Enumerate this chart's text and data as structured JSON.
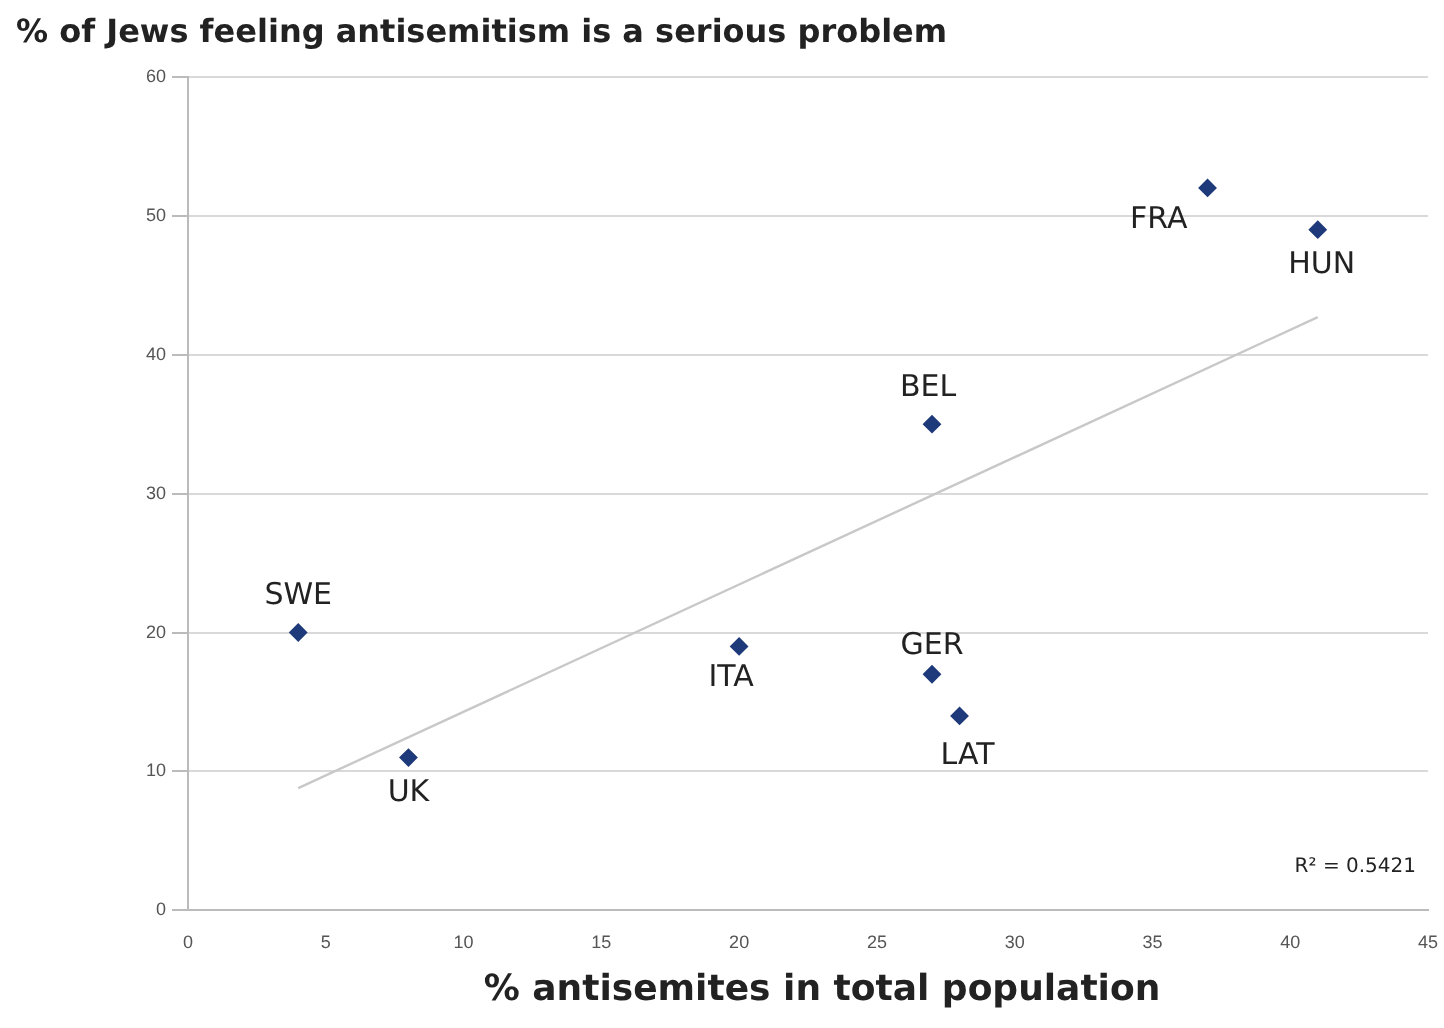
{
  "chart_data": {
    "type": "scatter",
    "title": "% of Jews feeling antisemitism is a serious problem",
    "xlabel": "% antisemites in total population",
    "x": [
      4,
      8,
      20,
      27,
      28,
      27,
      37,
      41
    ],
    "series": [
      {
        "color": "#1f3a7a",
        "values": [
          20,
          11,
          19,
          17,
          14,
          35,
          52,
          49
        ],
        "marker": "diamond"
      },
      {
        "type": "line",
        "color": "#c8c8c8",
        "x": [
          4,
          41
        ],
        "values": [
          8.8,
          42.7
        ],
        "marker": "none"
      }
    ],
    "annotations": [
      {
        "text": "SWE",
        "x": 4,
        "y": 20
      },
      {
        "text": "UK",
        "x": 8,
        "y": 11
      },
      {
        "text": "ITA",
        "x": 20,
        "y": 19
      },
      {
        "text": "GER",
        "x": 27,
        "y": 17
      },
      {
        "text": "LAT",
        "x": 28,
        "y": 14
      },
      {
        "text": "BEL",
        "x": 27,
        "y": 35
      },
      {
        "text": "FRA",
        "x": 37,
        "y": 52
      },
      {
        "text": "HUN",
        "x": 41,
        "y": 49
      },
      "R² = 0.5421"
    ],
    "xlim": [
      0,
      45
    ],
    "xticks": [
      0,
      5,
      10,
      15,
      20,
      25,
      30,
      35,
      40,
      45
    ],
    "ylim": [
      0,
      60
    ],
    "yticks": [
      0,
      10,
      20,
      30,
      40,
      50,
      60
    ],
    "grid": "y",
    "legend": false
  }
}
